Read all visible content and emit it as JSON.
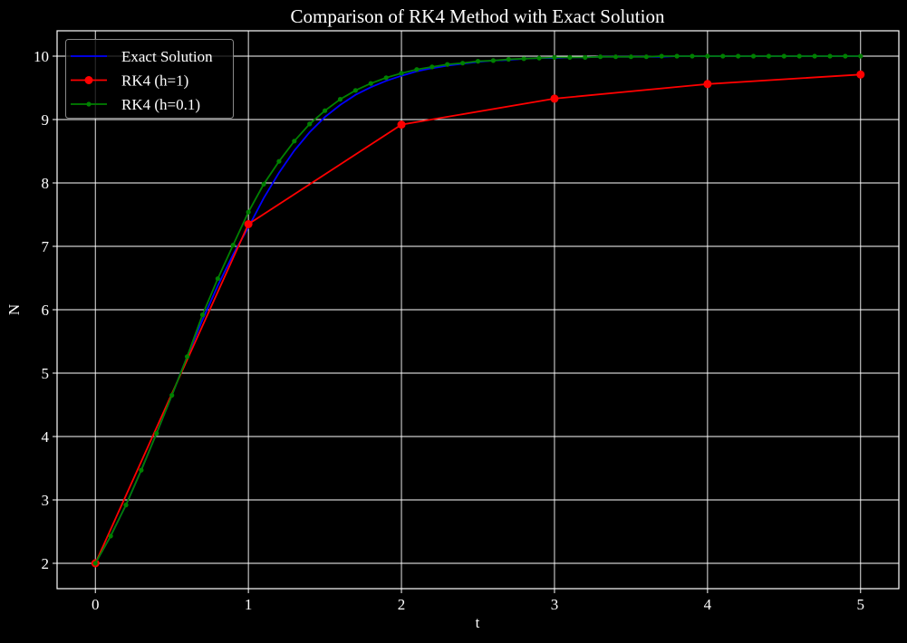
{
  "chart_data": {
    "type": "line",
    "title": "Comparison of RK4 Method with Exact Solution",
    "xlabel": "t",
    "ylabel": "N",
    "xlim": [
      -0.25,
      5.25
    ],
    "ylim": [
      1.6,
      10.4
    ],
    "xticks": [
      0,
      1,
      2,
      3,
      4,
      5
    ],
    "yticks": [
      2,
      3,
      4,
      5,
      6,
      7,
      8,
      9,
      10
    ],
    "grid": true,
    "legend_position": "upper left",
    "series": [
      {
        "name": "Exact Solution",
        "color": "#0000ff",
        "marker": "none",
        "x": [
          0,
          0.1,
          0.2,
          0.3,
          0.4,
          0.5,
          0.6,
          0.7,
          0.8,
          0.9,
          1.0,
          1.1,
          1.2,
          1.3,
          1.4,
          1.5,
          1.6,
          1.7,
          1.8,
          1.9,
          2.0,
          2.1,
          2.2,
          2.3,
          2.4,
          2.5,
          2.6,
          2.7,
          2.8,
          2.9,
          3.0,
          3.1,
          3.2,
          3.3,
          3.4,
          3.5,
          3.6,
          3.7,
          3.8,
          3.9,
          4.0,
          4.1,
          4.2,
          4.3,
          4.4,
          4.5,
          4.6,
          4.7,
          4.8,
          4.9,
          5.0
        ],
        "y": [
          2.0,
          2.43,
          2.92,
          3.47,
          4.05,
          4.65,
          5.26,
          5.84,
          6.38,
          6.87,
          7.3,
          7.76,
          8.16,
          8.51,
          8.8,
          9.04,
          9.23,
          9.39,
          9.51,
          9.61,
          9.69,
          9.76,
          9.81,
          9.85,
          9.88,
          9.91,
          9.93,
          9.94,
          9.96,
          9.97,
          9.97,
          9.98,
          9.98,
          9.99,
          9.99,
          9.99,
          9.99,
          9.99,
          10.0,
          10.0,
          10.0,
          10.0,
          10.0,
          10.0,
          10.0,
          10.0,
          10.0,
          10.0,
          10.0,
          10.0,
          10.0
        ]
      },
      {
        "name": "RK4 (h=1)",
        "color": "#ff0000",
        "marker": "circle",
        "x": [
          0,
          1,
          2,
          3,
          4,
          5
        ],
        "y": [
          2.0,
          7.35,
          8.92,
          9.33,
          9.56,
          9.71
        ]
      },
      {
        "name": "RK4 (h=0.1)",
        "color": "#008000",
        "marker": "small-circle",
        "x": [
          0,
          0.1,
          0.2,
          0.3,
          0.4,
          0.5,
          0.6,
          0.7,
          0.8,
          0.9,
          1.0,
          1.1,
          1.2,
          1.3,
          1.4,
          1.5,
          1.6,
          1.7,
          1.8,
          1.9,
          2.0,
          2.1,
          2.2,
          2.3,
          2.4,
          2.5,
          2.6,
          2.7,
          2.8,
          2.9,
          3.0,
          3.1,
          3.2,
          3.3,
          3.4,
          3.5,
          3.6,
          3.7,
          3.8,
          3.9,
          4.0,
          4.1,
          4.2,
          4.3,
          4.4,
          4.5,
          4.6,
          4.7,
          4.8,
          4.9,
          5.0
        ],
        "y": [
          2.0,
          2.43,
          2.92,
          3.47,
          4.05,
          4.65,
          5.26,
          5.92,
          6.49,
          7.02,
          7.54,
          7.98,
          8.34,
          8.66,
          8.93,
          9.14,
          9.32,
          9.46,
          9.57,
          9.66,
          9.73,
          9.79,
          9.83,
          9.87,
          9.89,
          9.92,
          9.93,
          9.95,
          9.96,
          9.97,
          9.98,
          9.98,
          9.98,
          9.99,
          9.99,
          9.99,
          9.99,
          10.0,
          10.0,
          10.0,
          10.0,
          10.0,
          10.0,
          10.0,
          10.0,
          10.0,
          10.0,
          10.0,
          10.0,
          10.0,
          10.0
        ]
      }
    ]
  }
}
